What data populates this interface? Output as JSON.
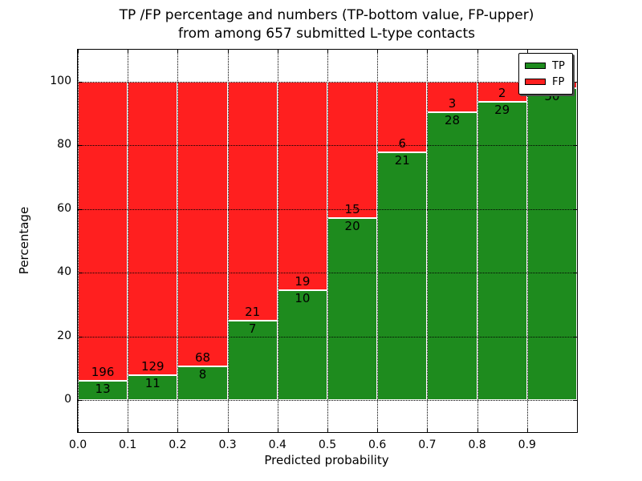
{
  "chart_data": {
    "type": "bar",
    "stacked": true,
    "title_line1": "TP /FP percentage and numbers (TP-bottom value, FP-upper)",
    "title_line2": "from among 657 submitted L-type contacts",
    "xlabel": "Predicted probability",
    "ylabel": "Percentage",
    "xlim": [
      0.0,
      1.0
    ],
    "ylim": [
      -10,
      110
    ],
    "grid": true,
    "x_tick_labels": [
      "0.0",
      "0.1",
      "0.2",
      "0.3",
      "0.4",
      "0.5",
      "0.6",
      "0.7",
      "0.8",
      "0.9"
    ],
    "y_tick_labels": [
      "0",
      "20",
      "40",
      "60",
      "80",
      "100"
    ],
    "bar_width": 0.1,
    "colors": {
      "tp": "#1e8b1e",
      "fp": "#ff1f1f",
      "edge": "#ffffff",
      "grid": "#000000"
    },
    "legend": [
      {
        "label": "TP",
        "color": "#1e8b1e"
      },
      {
        "label": "FP",
        "color": "#ff1f1f"
      }
    ],
    "legend_position": "upper right",
    "bars": [
      {
        "x_range": [
          0.0,
          0.1
        ],
        "tp": 13,
        "fp": 196,
        "tp_label": "13",
        "fp_label": "196"
      },
      {
        "x_range": [
          0.1,
          0.2
        ],
        "tp": 11,
        "fp": 129,
        "tp_label": "11",
        "fp_label": "129"
      },
      {
        "x_range": [
          0.2,
          0.3
        ],
        "tp": 8,
        "fp": 68,
        "tp_label": "8",
        "fp_label": "68"
      },
      {
        "x_range": [
          0.3,
          0.4
        ],
        "tp": 7,
        "fp": 21,
        "tp_label": "7",
        "fp_label": "21"
      },
      {
        "x_range": [
          0.4,
          0.5
        ],
        "tp": 10,
        "fp": 19,
        "tp_label": "10",
        "fp_label": "19"
      },
      {
        "x_range": [
          0.5,
          0.6
        ],
        "tp": 20,
        "fp": 15,
        "tp_label": "20",
        "fp_label": "15"
      },
      {
        "x_range": [
          0.6,
          0.7
        ],
        "tp": 21,
        "fp": 6,
        "tp_label": "21",
        "fp_label": "6"
      },
      {
        "x_range": [
          0.7,
          0.8
        ],
        "tp": 28,
        "fp": 3,
        "tp_label": "28",
        "fp_label": "3"
      },
      {
        "x_range": [
          0.8,
          0.9
        ],
        "tp": 29,
        "fp": 2,
        "tp_label": "29",
        "fp_label": "2"
      },
      {
        "x_range": [
          0.9,
          1.0
        ],
        "tp": 50,
        "fp": 1,
        "tp_label": "50",
        "fp_label": "",
        "fp_label_hidden_behind_legend": true
      }
    ]
  }
}
